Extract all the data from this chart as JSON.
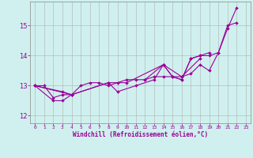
{
  "background_color": "#cff0ee",
  "grid_color": "#b0b0b0",
  "line_color": "#990099",
  "tick_color": "#990099",
  "xlabel": "Windchill (Refroidissement éolien,°C)",
  "xlim": [
    -0.5,
    23.5
  ],
  "ylim": [
    11.75,
    15.8
  ],
  "yticks": [
    12,
    13,
    14,
    15
  ],
  "xticks": [
    0,
    1,
    2,
    3,
    4,
    5,
    6,
    7,
    8,
    9,
    10,
    11,
    12,
    13,
    14,
    15,
    16,
    17,
    18,
    19,
    20,
    21,
    22,
    23
  ],
  "series": [
    {
      "x": [
        0,
        1,
        2,
        3,
        4,
        5,
        6,
        7,
        8,
        9,
        10,
        11,
        12,
        13,
        14,
        15,
        16,
        17,
        18,
        19,
        20,
        21,
        22
      ],
      "y": [
        13.0,
        13.0,
        12.6,
        12.7,
        12.7,
        13.0,
        13.1,
        13.1,
        13.0,
        13.1,
        13.2,
        13.2,
        13.2,
        13.3,
        13.3,
        13.3,
        13.3,
        13.4,
        13.7,
        13.5,
        14.1,
        15.0,
        15.1
      ]
    },
    {
      "x": [
        0,
        2,
        3,
        4,
        8,
        9,
        11,
        13,
        14,
        15,
        16,
        17,
        18,
        19
      ],
      "y": [
        13.0,
        12.5,
        12.5,
        12.7,
        13.1,
        12.8,
        13.0,
        13.2,
        13.7,
        13.3,
        13.2,
        13.9,
        14.0,
        14.1
      ]
    },
    {
      "x": [
        0,
        3,
        4,
        8,
        10,
        14,
        16,
        18
      ],
      "y": [
        13.0,
        12.8,
        12.7,
        13.1,
        13.1,
        13.7,
        13.3,
        13.9
      ]
    },
    {
      "x": [
        0,
        4
      ],
      "y": [
        13.0,
        12.7
      ]
    },
    {
      "x": [
        12,
        14,
        15,
        16,
        17,
        18,
        19,
        20,
        21,
        22
      ],
      "y": [
        13.2,
        13.7,
        13.3,
        13.2,
        13.9,
        14.0,
        14.0,
        14.1,
        14.9,
        15.6
      ]
    }
  ],
  "xlabel_fontsize": 5.5,
  "xtick_fontsize": 4.5,
  "ytick_fontsize": 6.0,
  "linewidth": 0.8,
  "markersize": 2.0
}
